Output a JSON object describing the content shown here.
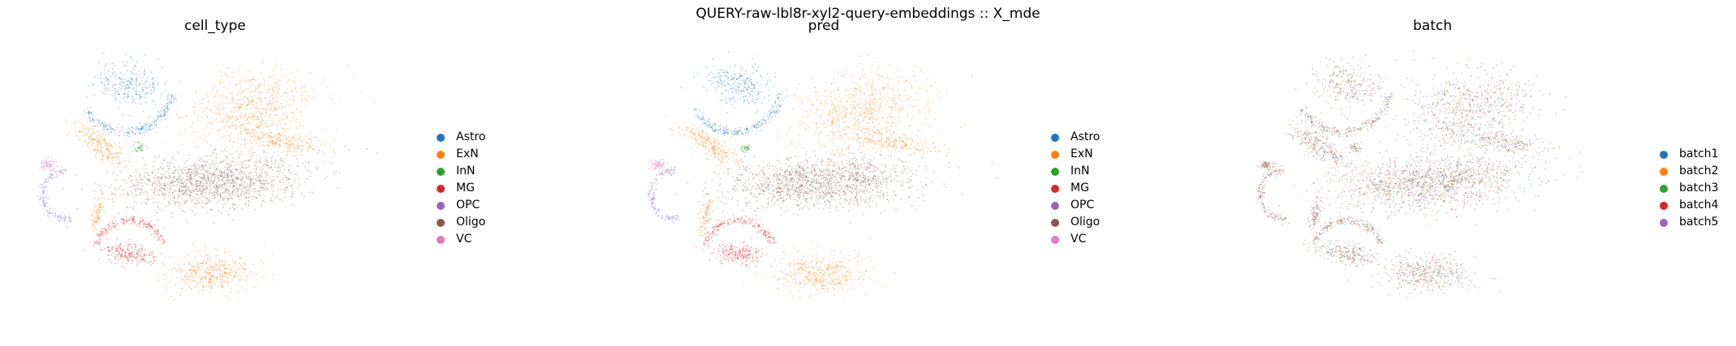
{
  "figure": {
    "suptitle": "QUERY-raw-lbl8r-xyl2-query-embeddings :: X_mde"
  },
  "chart_data": [
    {
      "type": "scatter",
      "title": "cell_type",
      "legend_title": "",
      "legend_placement": "right",
      "grid": false,
      "axes_visible": false,
      "categories": [
        "Astro",
        "ExN",
        "InN",
        "MG",
        "OPC",
        "Oligo",
        "VC"
      ],
      "colors": [
        "#1f77b4",
        "#ff7f0e",
        "#2ca02c",
        "#d62728",
        "#9467bd",
        "#8c564b",
        "#e377c2"
      ]
    },
    {
      "type": "scatter",
      "title": "pred",
      "legend_title": "",
      "legend_placement": "right",
      "grid": false,
      "axes_visible": false,
      "categories": [
        "Astro",
        "ExN",
        "InN",
        "MG",
        "OPC",
        "Oligo",
        "VC"
      ],
      "colors": [
        "#1f77b4",
        "#ff7f0e",
        "#2ca02c",
        "#d62728",
        "#9467bd",
        "#8c564b",
        "#e377c2"
      ]
    },
    {
      "type": "scatter",
      "title": "batch",
      "legend_title": "",
      "legend_placement": "right",
      "grid": false,
      "axes_visible": false,
      "categories": [
        "batch1",
        "batch2",
        "batch3",
        "batch4",
        "batch5"
      ],
      "colors": [
        "#1f77b4",
        "#ff7f0e",
        "#2ca02c",
        "#d62728",
        "#9467bd"
      ]
    }
  ]
}
